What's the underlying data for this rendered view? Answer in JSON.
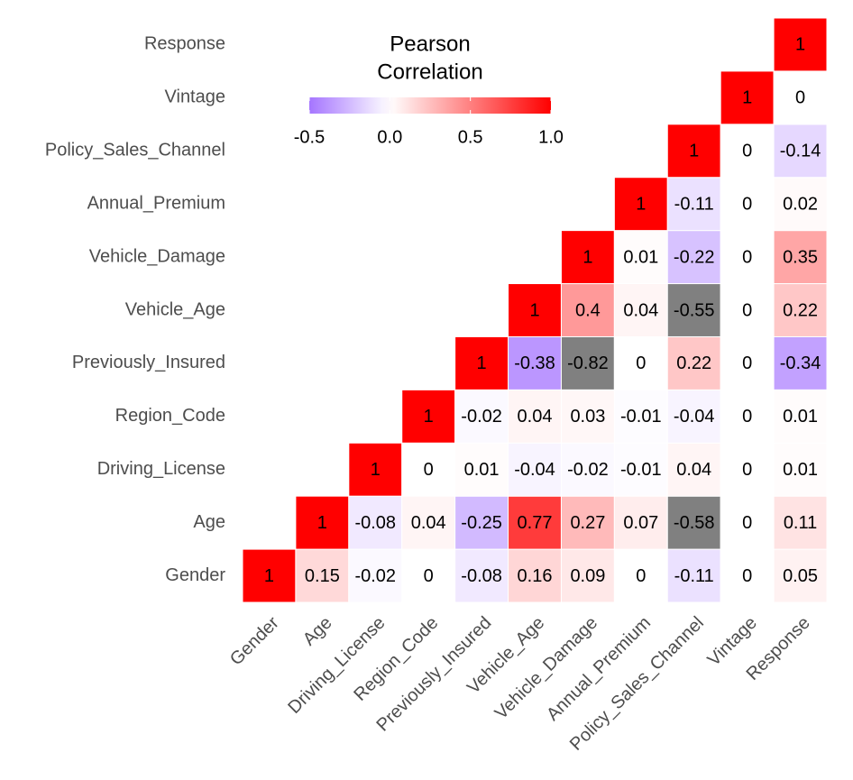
{
  "chart_data": {
    "type": "heatmap",
    "variables": [
      "Gender",
      "Age",
      "Driving_License",
      "Region_Code",
      "Previously_Insured",
      "Vehicle_Age",
      "Vehicle_Damage",
      "Annual_Premium",
      "Policy_Sales_Channel",
      "Vintage",
      "Response"
    ],
    "values": [
      [
        1,
        0.15,
        -0.02,
        0,
        -0.08,
        0.16,
        0.09,
        0,
        -0.11,
        0,
        0.05
      ],
      [
        null,
        1,
        -0.08,
        0.04,
        -0.25,
        0.77,
        0.27,
        0.07,
        -0.58,
        0,
        0.11
      ],
      [
        null,
        null,
        1,
        0,
        0.01,
        -0.04,
        -0.02,
        -0.01,
        0.04,
        0,
        0.01
      ],
      [
        null,
        null,
        null,
        1,
        -0.02,
        0.04,
        0.03,
        -0.01,
        -0.04,
        0,
        0.01
      ],
      [
        null,
        null,
        null,
        null,
        1,
        -0.38,
        -0.82,
        0,
        0.22,
        0,
        -0.34
      ],
      [
        null,
        null,
        null,
        null,
        null,
        1,
        0.4,
        0.04,
        -0.55,
        0,
        0.22
      ],
      [
        null,
        null,
        null,
        null,
        null,
        null,
        1,
        0.01,
        -0.22,
        0,
        0.35
      ],
      [
        null,
        null,
        null,
        null,
        null,
        null,
        null,
        1,
        -0.11,
        0,
        0.02
      ],
      [
        null,
        null,
        null,
        null,
        null,
        null,
        null,
        null,
        1,
        0,
        -0.14
      ],
      [
        null,
        null,
        null,
        null,
        null,
        null,
        null,
        null,
        null,
        1,
        0
      ],
      [
        null,
        null,
        null,
        null,
        null,
        null,
        null,
        null,
        null,
        null,
        1
      ]
    ],
    "legend_title": [
      "Pearson",
      "Correlation"
    ],
    "colorscale": {
      "low": "#a575ff",
      "mid": "#ffffff",
      "high": "#ff0000",
      "na_color": "#808080"
    },
    "clim": [
      -0.5,
      1
    ],
    "cticks": [
      -0.5,
      {
        "value": 0,
        "label": "0.0"
      },
      0.5,
      {
        "value": 1,
        "label": "1.0"
      }
    ]
  }
}
